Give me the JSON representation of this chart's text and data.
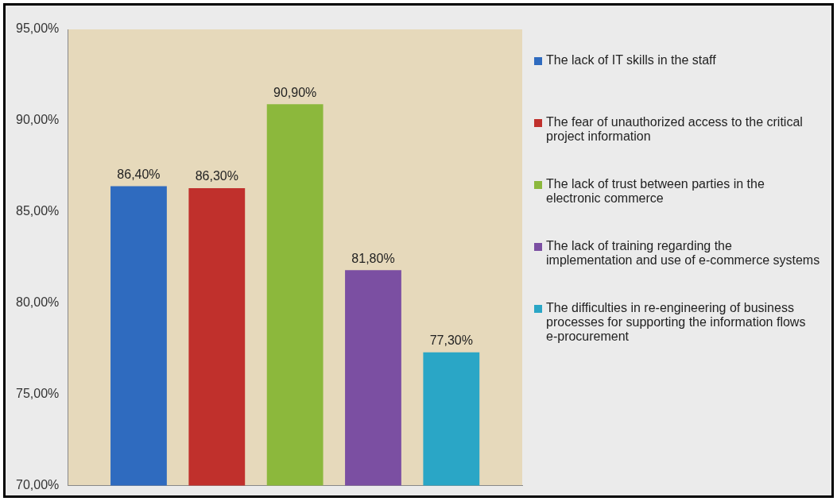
{
  "chart_data": {
    "type": "bar",
    "categories": [
      null
    ],
    "series": [
      {
        "name": "The lack of IT skills in the staff",
        "color": "#2f6bbf",
        "values": [
          86.4
        ],
        "value_labels": [
          "86,40%"
        ]
      },
      {
        "name": "The fear of unauthorized access to the critical project information",
        "color": "#c0302c",
        "values": [
          86.3
        ],
        "value_labels": [
          "86,30%"
        ]
      },
      {
        "name": "The lack of trust between parties in the electronic commerce",
        "color": "#8cb83c",
        "values": [
          90.9
        ],
        "value_labels": [
          "90,90%"
        ]
      },
      {
        "name": "The lack of training regarding the implementation and use of e-commerce systems",
        "color": "#7b4fa2",
        "values": [
          81.8
        ],
        "value_labels": [
          "81,80%"
        ]
      },
      {
        "name": "The difficulties in re-engineering of business processes for supporting the information flows e-procurement",
        "color": "#2aa6c6",
        "values": [
          77.3
        ],
        "value_labels": [
          "77,30%"
        ]
      }
    ],
    "ylim": [
      70,
      95
    ],
    "yticks": [
      {
        "value": 70,
        "label": "70,00%"
      },
      {
        "value": 75,
        "label": "75,00%"
      },
      {
        "value": 80,
        "label": "80,00%"
      },
      {
        "value": 85,
        "label": "85,00%"
      },
      {
        "value": 90,
        "label": "90,00%"
      },
      {
        "value": 95,
        "label": "95,00%"
      }
    ],
    "grid": false,
    "legend": "right"
  }
}
